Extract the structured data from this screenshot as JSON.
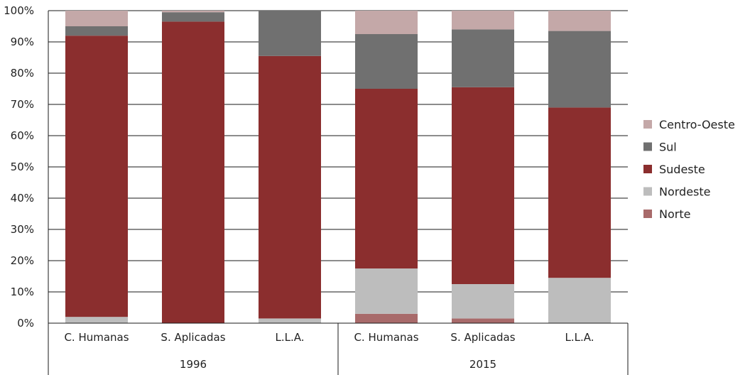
{
  "chart_data": {
    "type": "bar",
    "stacked": true,
    "groups": [
      {
        "label": "1996",
        "categories": [
          "C. Humanas",
          "S. Aplicadas",
          "L.L.A."
        ]
      },
      {
        "label": "2015",
        "categories": [
          "C. Humanas",
          "S. Aplicadas",
          "L.L.A."
        ]
      }
    ],
    "categories": [
      "C. Humanas",
      "S. Aplicadas",
      "L.L.A.",
      "C. Humanas",
      "S. Aplicadas",
      "L.L.A."
    ],
    "series": [
      {
        "name": "Norte",
        "color": "#a86a6a",
        "values": [
          0,
          0,
          0,
          3,
          1.5,
          0
        ]
      },
      {
        "name": "Nordeste",
        "color": "#bdbdbd",
        "values": [
          2,
          0,
          1.5,
          14.5,
          11,
          14.5
        ]
      },
      {
        "name": "Sudeste",
        "color": "#8b2e2e",
        "values": [
          90,
          96.5,
          84,
          57.5,
          63,
          54.5
        ]
      },
      {
        "name": "Sul",
        "color": "#707070",
        "values": [
          3,
          3,
          14.5,
          17.5,
          18.5,
          24.5
        ]
      },
      {
        "name": "Centro-Oeste",
        "color": "#c4a8a8",
        "values": [
          5,
          0.5,
          0,
          7.5,
          6,
          6.5
        ]
      }
    ],
    "legend_order": [
      "Centro-Oeste",
      "Sul",
      "Sudeste",
      "Nordeste",
      "Norte"
    ],
    "yticks": [
      "0%",
      "10%",
      "20%",
      "30%",
      "40%",
      "50%",
      "60%",
      "70%",
      "80%",
      "90%",
      "100%"
    ],
    "ylim": [
      0,
      100
    ],
    "grid": true,
    "legend_position": "right"
  }
}
